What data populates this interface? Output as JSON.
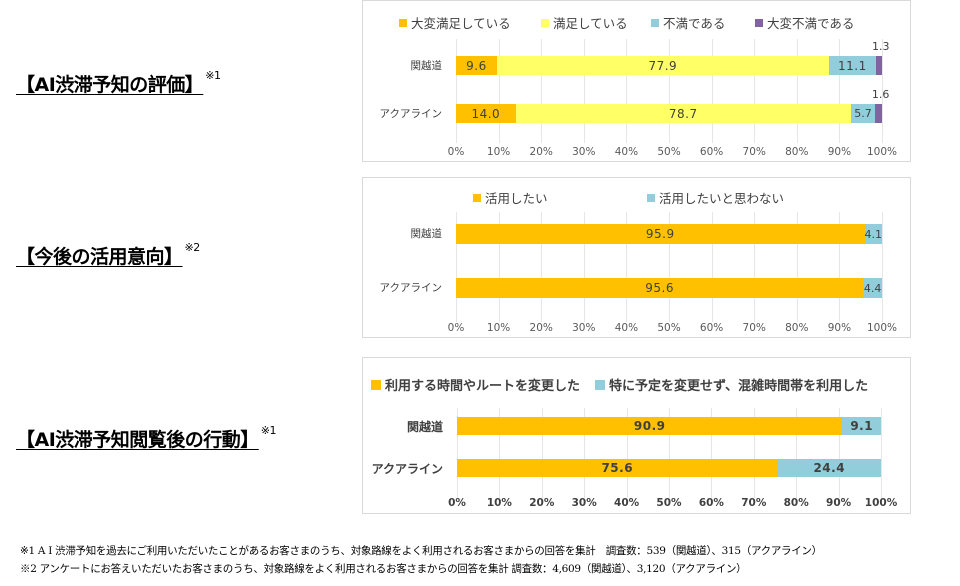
{
  "headings": [
    {
      "text": "【AI渋滞予知の評価】",
      "note": "※1"
    },
    {
      "text": "【今後の活用意向】",
      "note": "※2"
    },
    {
      "text": "【AI渋滞予知閲覧後の行動】",
      "note": "※1"
    }
  ],
  "footnotes": [
    "※1 A I 渋滞予知を過去にご利用いただいたことがあるお客さまのうち、対象路線をよく利用されるお客さまからの回答を集計　調査数：539（関越道）、315（アクアライン）",
    "※2 アンケートにお答えいただいたお客さまのうち、対象路線をよく利用されるお客さまからの回答を集計 調査数：4,609（関越道）、3,120（アクアライン）"
  ],
  "colors": {
    "very_satisfied": "#FFC000",
    "satisfied": "#FFFF66",
    "dissatisfied": "#92CDDC",
    "very_dissatisfied": "#8064A2"
  },
  "chart_data": [
    {
      "type": "bar",
      "orientation": "horizontal",
      "stacked": true,
      "title": "AI渋滞予知の評価",
      "categories": [
        "関越道",
        "アクアライン"
      ],
      "series": [
        {
          "name": "大変満足している",
          "color": "#FFC000",
          "values": [
            9.6,
            14.0
          ]
        },
        {
          "name": "満足している",
          "color": "#FFFF66",
          "values": [
            77.9,
            78.7
          ]
        },
        {
          "name": "不満である",
          "color": "#92CDDC",
          "values": [
            11.1,
            5.7
          ]
        },
        {
          "name": "大変不満である",
          "color": "#8064A2",
          "values": [
            1.3,
            1.6
          ]
        }
      ],
      "xticks": [
        "0%",
        "10%",
        "20%",
        "30%",
        "40%",
        "50%",
        "60%",
        "70%",
        "80%",
        "90%",
        "100%"
      ],
      "xlim": [
        0,
        100
      ],
      "legend_position": "top",
      "grid": true
    },
    {
      "type": "bar",
      "orientation": "horizontal",
      "stacked": true,
      "title": "今後の活用意向",
      "categories": [
        "関越道",
        "アクアライン"
      ],
      "series": [
        {
          "name": "活用したい",
          "color": "#FFC000",
          "values": [
            95.9,
            95.6
          ]
        },
        {
          "name": "活用したいと思わない",
          "color": "#92CDDC",
          "values": [
            4.1,
            4.4
          ]
        }
      ],
      "xticks": [
        "0%",
        "10%",
        "20%",
        "30%",
        "40%",
        "50%",
        "60%",
        "70%",
        "80%",
        "90%",
        "100%"
      ],
      "xlim": [
        0,
        100
      ],
      "legend_position": "top",
      "grid": true
    },
    {
      "type": "bar",
      "orientation": "horizontal",
      "stacked": true,
      "title": "AI渋滞予知閲覧後の行動",
      "categories": [
        "関越道",
        "アクアライン"
      ],
      "series": [
        {
          "name": "利用する時間やルートを変更した",
          "color": "#FFC000",
          "values": [
            90.9,
            75.6
          ]
        },
        {
          "name": "特に予定を変更せず、混雑時間帯を利用した",
          "color": "#92CDDC",
          "values": [
            9.1,
            24.4
          ]
        }
      ],
      "xticks": [
        "0%",
        "10%",
        "20%",
        "30%",
        "40%",
        "50%",
        "60%",
        "70%",
        "80%",
        "90%",
        "100%"
      ],
      "xlim": [
        0,
        100
      ],
      "legend_position": "top",
      "grid": true
    }
  ]
}
